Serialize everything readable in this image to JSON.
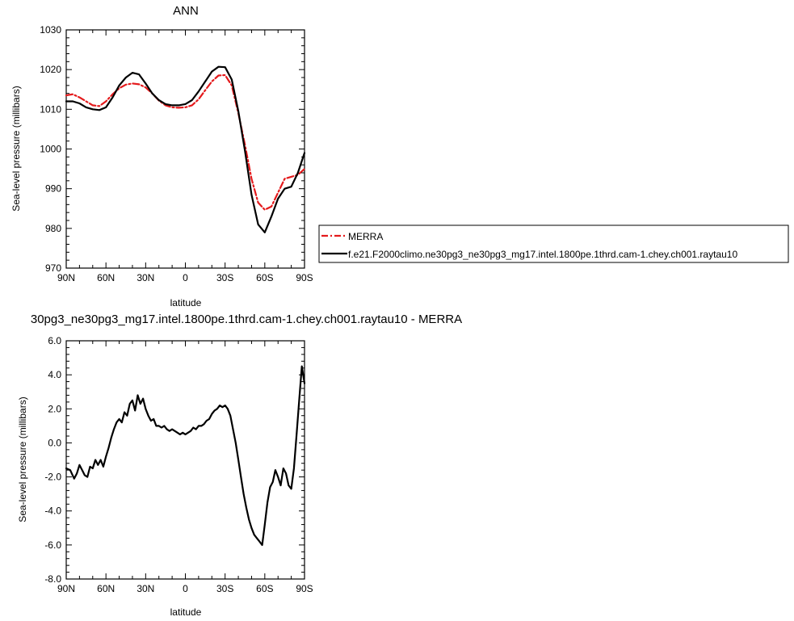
{
  "chart_data": [
    {
      "type": "line",
      "title": "ANN",
      "xlabel": "latitude",
      "ylabel": "Sea-level pressure (millibars)",
      "xlim": [
        90,
        -90
      ],
      "ylim": [
        970,
        1030
      ],
      "xtick_labels": [
        "90N",
        "60N",
        "30N",
        "0",
        "30S",
        "60S",
        "90S"
      ],
      "ytick_labels": [
        "970",
        "980",
        "990",
        "1000",
        "1010",
        "1020",
        "1030"
      ],
      "legend_placement": "right",
      "series": [
        {
          "name": "MERRA",
          "color": "#e41a1c",
          "style": "dashed",
          "x": [
            90,
            85,
            80,
            75,
            70,
            65,
            60,
            55,
            50,
            45,
            40,
            35,
            30,
            25,
            20,
            15,
            10,
            5,
            0,
            -5,
            -10,
            -15,
            -20,
            -25,
            -30,
            -35,
            -40,
            -45,
            -50,
            -55,
            -60,
            -65,
            -70,
            -75,
            -80,
            -85,
            -90
          ],
          "y": [
            1013.5,
            1013.8,
            1013.0,
            1012.0,
            1011.0,
            1010.8,
            1012.0,
            1013.8,
            1015.3,
            1016.2,
            1016.5,
            1016.3,
            1015.5,
            1014.0,
            1012.2,
            1011.0,
            1010.5,
            1010.4,
            1010.5,
            1011.0,
            1012.5,
            1014.8,
            1017.0,
            1018.5,
            1018.6,
            1016.0,
            1009.0,
            1001.0,
            992.5,
            986.5,
            984.7,
            985.5,
            989.0,
            992.5,
            993.0,
            993.5,
            995.0
          ]
        },
        {
          "name": "f.e21.F2000climo.ne30pg3_ne30pg3_mg17.intel.1800pe.1thrd.cam-1.chey.ch001.raytau10",
          "color": "#000000",
          "style": "solid",
          "x": [
            90,
            85,
            80,
            75,
            70,
            65,
            60,
            55,
            50,
            45,
            40,
            35,
            30,
            25,
            20,
            15,
            10,
            5,
            0,
            -5,
            -10,
            -15,
            -20,
            -25,
            -30,
            -35,
            -40,
            -45,
            -50,
            -55,
            -60,
            -65,
            -70,
            -75,
            -80,
            -85,
            -90
          ],
          "y": [
            1012.0,
            1012.0,
            1011.5,
            1010.5,
            1010.0,
            1009.8,
            1010.5,
            1013.0,
            1016.0,
            1018.0,
            1019.2,
            1018.8,
            1016.5,
            1014.0,
            1012.3,
            1011.3,
            1011.0,
            1011.0,
            1011.3,
            1012.3,
            1014.5,
            1017.0,
            1019.5,
            1020.7,
            1020.6,
            1017.5,
            1009.5,
            999.5,
            988.5,
            981.0,
            979.0,
            983.0,
            987.5,
            990.0,
            990.5,
            994.0,
            999.0
          ]
        }
      ]
    },
    {
      "type": "line",
      "title": "30pg3_ne30pg3_mg17.intel.1800pe.1thrd.cam-1.chey.ch001.raytau10 - MERRA",
      "xlabel": "latitude",
      "ylabel": "Sea-level pressure (millibars)",
      "xlim": [
        90,
        -90
      ],
      "ylim": [
        -8,
        6
      ],
      "xtick_labels": [
        "90N",
        "60N",
        "30N",
        "0",
        "30S",
        "60S",
        "90S"
      ],
      "ytick_labels": [
        "-8.0",
        "-6.0",
        "-4.0",
        "-2.0",
        "0.0",
        "2.0",
        "4.0",
        "6.0"
      ],
      "series": [
        {
          "color": "#000000",
          "style": "solid",
          "x": [
            90,
            87,
            84,
            82,
            80,
            78,
            76,
            74,
            72,
            70,
            68,
            66,
            64,
            62,
            60,
            58,
            56,
            54,
            52,
            50,
            48,
            46,
            44,
            42,
            40,
            38,
            36,
            34,
            32,
            30,
            28,
            26,
            24,
            22,
            20,
            18,
            16,
            14,
            12,
            10,
            8,
            6,
            4,
            2,
            0,
            -2,
            -4,
            -6,
            -8,
            -10,
            -12,
            -14,
            -16,
            -18,
            -20,
            -22,
            -24,
            -26,
            -28,
            -30,
            -32,
            -34,
            -36,
            -38,
            -40,
            -42,
            -44,
            -46,
            -48,
            -50,
            -52,
            -54,
            -56,
            -58,
            -60,
            -62,
            -64,
            -66,
            -68,
            -70,
            -72,
            -74,
            -76,
            -78,
            -80,
            -82,
            -84,
            -86,
            -88,
            -90
          ],
          "y": [
            -1.5,
            -1.6,
            -2.1,
            -1.8,
            -1.3,
            -1.6,
            -1.9,
            -2.0,
            -1.4,
            -1.5,
            -1.0,
            -1.3,
            -1.0,
            -1.4,
            -0.8,
            -0.3,
            0.3,
            0.8,
            1.2,
            1.4,
            1.2,
            1.8,
            1.6,
            2.3,
            2.5,
            1.9,
            2.8,
            2.3,
            2.6,
            2.0,
            1.6,
            1.3,
            1.4,
            1.0,
            1.0,
            0.9,
            1.0,
            0.8,
            0.7,
            0.8,
            0.7,
            0.6,
            0.5,
            0.6,
            0.5,
            0.6,
            0.7,
            0.9,
            0.8,
            1.0,
            1.0,
            1.1,
            1.3,
            1.4,
            1.7,
            1.9,
            2.0,
            2.2,
            2.1,
            2.2,
            2.0,
            1.6,
            0.8,
            0.0,
            -1.0,
            -2.0,
            -3.0,
            -3.8,
            -4.5,
            -5.0,
            -5.4,
            -5.6,
            -5.8,
            -6.0,
            -4.8,
            -3.5,
            -2.6,
            -2.3,
            -1.6,
            -2.0,
            -2.5,
            -1.5,
            -1.8,
            -2.5,
            -2.7,
            -1.5,
            0.5,
            2.5,
            4.5,
            3.5
          ]
        }
      ]
    }
  ]
}
